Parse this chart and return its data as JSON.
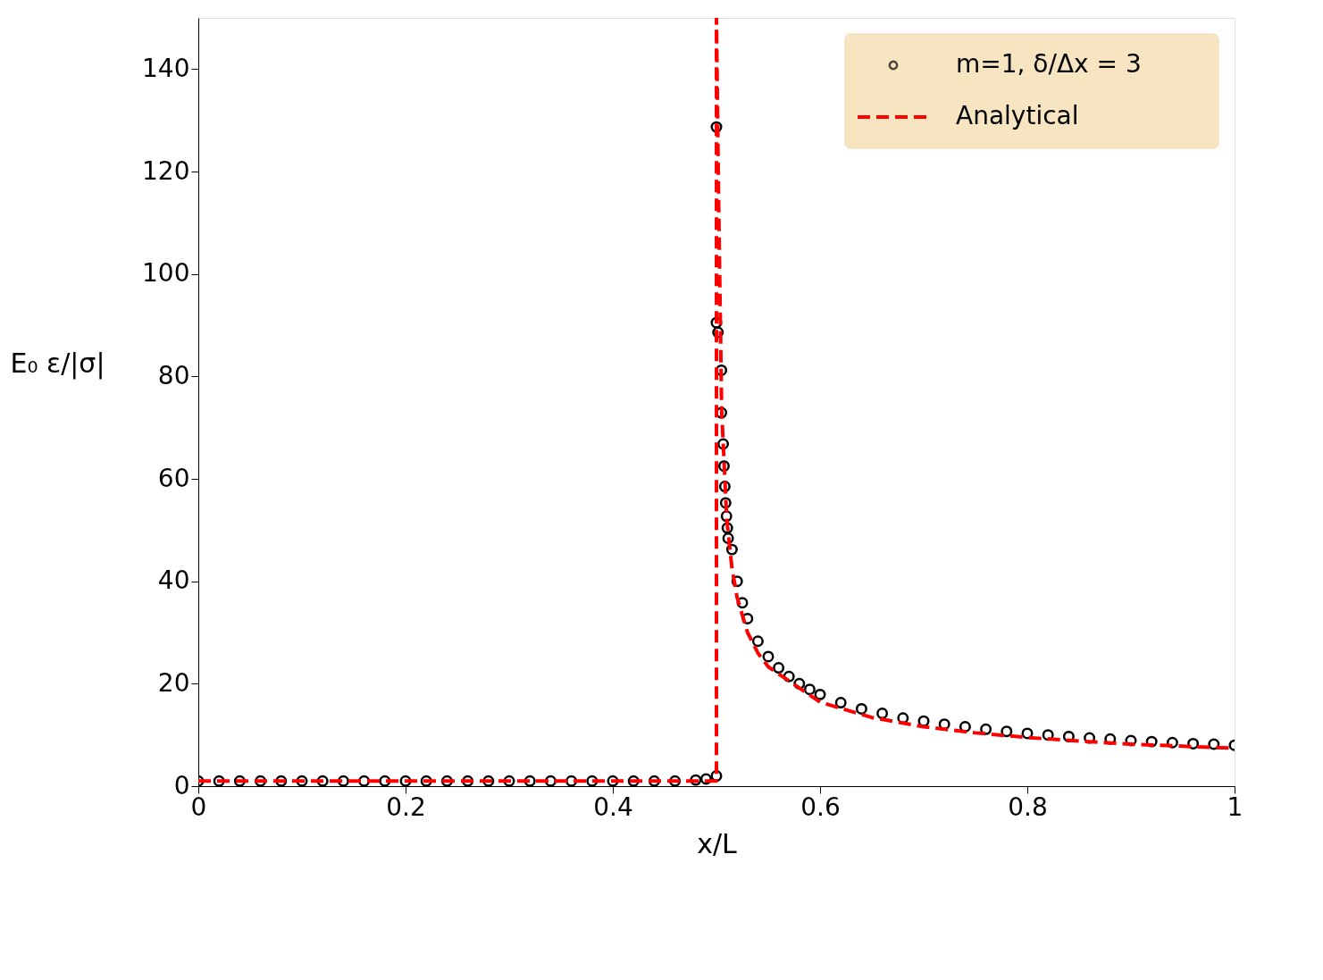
{
  "chart_data": {
    "type": "scatter",
    "xlabel": "x/L",
    "ylabel": "E₀ ε/|σ|",
    "xlim": [
      0,
      1
    ],
    "ylim": [
      0,
      150
    ],
    "xticks": [
      0,
      0.2,
      0.4,
      0.6,
      0.8,
      1
    ],
    "yticks": [
      0,
      20,
      40,
      60,
      80,
      100,
      120,
      140
    ],
    "grid": false,
    "legend": "top right",
    "series": [
      {
        "name": "m=1, δ/Δx = 3",
        "marker": "circle",
        "color": "#000000",
        "x": [
          0,
          0.02,
          0.04,
          0.06,
          0.08,
          0.1,
          0.12,
          0.14,
          0.16,
          0.18,
          0.2,
          0.22,
          0.24,
          0.26,
          0.28,
          0.3,
          0.32,
          0.34,
          0.36,
          0.38,
          0.4,
          0.42,
          0.44,
          0.46,
          0.48,
          0.49,
          0.5,
          0.5,
          0.5,
          0.5015,
          0.5048,
          0.5048,
          0.5065,
          0.5073,
          0.5081,
          0.5089,
          0.5097,
          0.5105,
          0.5113,
          0.515,
          0.52,
          0.525,
          0.53,
          0.54,
          0.55,
          0.56,
          0.57,
          0.58,
          0.59,
          0.6,
          0.62,
          0.64,
          0.66,
          0.68,
          0.7,
          0.72,
          0.74,
          0.76,
          0.78,
          0.8,
          0.82,
          0.84,
          0.86,
          0.88,
          0.9,
          0.92,
          0.94,
          0.96,
          0.98,
          1
        ],
        "values": [
          1,
          1,
          1,
          1,
          1,
          1,
          1,
          1,
          1,
          1,
          1,
          1,
          1,
          1,
          1,
          1,
          1,
          1,
          1,
          1,
          1,
          1,
          1,
          1,
          1.2,
          1.4,
          2,
          128.7,
          90.5,
          88.6,
          81.2,
          72.9,
          66.8,
          62.5,
          58.5,
          55.3,
          52.7,
          50.4,
          48.4,
          46.2,
          40,
          35.8,
          32.7,
          28.3,
          25.3,
          23.1,
          21.4,
          20,
          18.9,
          17.9,
          16.3,
          15.1,
          14.2,
          13.3,
          12.7,
          12.1,
          11.6,
          11.1,
          10.7,
          10.3,
          10,
          9.7,
          9.4,
          9.2,
          8.9,
          8.7,
          8.5,
          8.3,
          8.2,
          8
        ]
      },
      {
        "name": "Analytical",
        "type": "line",
        "line_style": "dashed",
        "color": "#ff0000",
        "x": [
          0,
          0.5,
          0.5,
          0.502,
          0.505,
          0.51,
          0.515,
          0.52,
          0.53,
          0.54,
          0.55,
          0.6,
          0.65,
          0.7,
          0.75,
          0.8,
          0.85,
          0.9,
          0.95,
          1
        ],
        "values": [
          1,
          1,
          150,
          116,
          73.5,
          52,
          42.5,
          36.8,
          30,
          26,
          23.3,
          16.4,
          13.4,
          11.6,
          10.4,
          9.5,
          8.8,
          8.2,
          7.8,
          7.4
        ]
      }
    ]
  }
}
